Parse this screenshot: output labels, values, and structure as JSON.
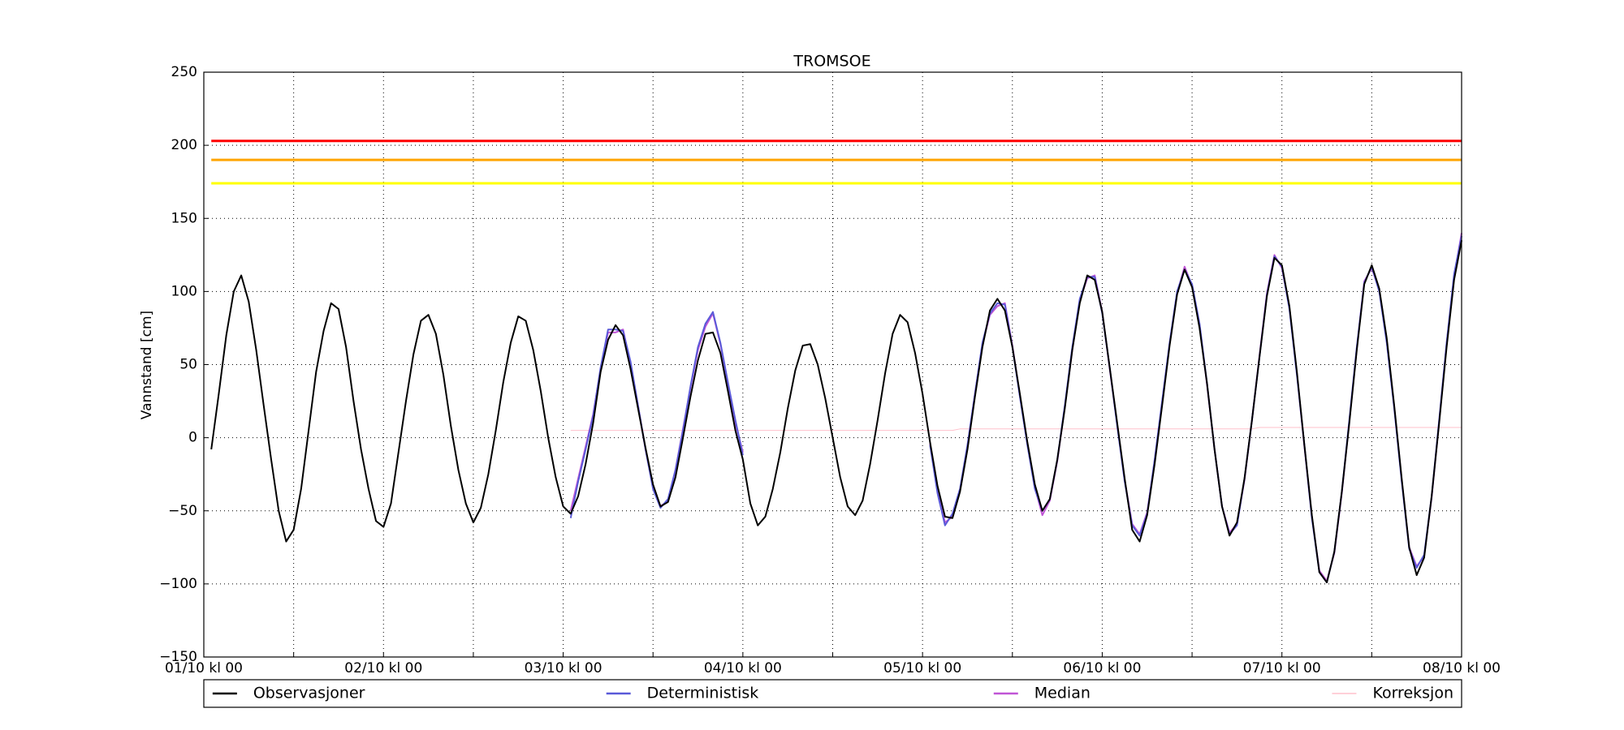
{
  "chart_data": {
    "type": "line",
    "title": "TROMSOE",
    "ylabel": "Vannstand [cm]",
    "x": [
      "01/10 kl 01",
      "01/10 kl 02",
      "01/10 kl 03",
      "01/10 kl 04",
      "01/10 kl 05",
      "01/10 kl 06",
      "01/10 kl 07",
      "01/10 kl 08",
      "01/10 kl 09",
      "01/10 kl 10",
      "01/10 kl 11",
      "01/10 kl 12",
      "01/10 kl 13",
      "01/10 kl 14",
      "01/10 kl 15",
      "01/10 kl 16",
      "01/10 kl 17",
      "01/10 kl 18",
      "01/10 kl 19",
      "01/10 kl 20",
      "01/10 kl 21",
      "01/10 kl 22",
      "01/10 kl 23",
      "02/10 kl 00",
      "02/10 kl 01",
      "02/10 kl 02",
      "02/10 kl 03",
      "02/10 kl 04",
      "02/10 kl 05",
      "02/10 kl 06",
      "02/10 kl 07",
      "02/10 kl 08",
      "02/10 kl 09",
      "02/10 kl 10",
      "02/10 kl 11",
      "02/10 kl 12",
      "02/10 kl 13",
      "02/10 kl 14",
      "02/10 kl 15",
      "02/10 kl 16",
      "02/10 kl 17",
      "02/10 kl 18",
      "02/10 kl 19",
      "02/10 kl 20",
      "02/10 kl 21",
      "02/10 kl 22",
      "02/10 kl 23",
      "03/10 kl 00",
      "03/10 kl 01",
      "03/10 kl 02",
      "03/10 kl 03",
      "03/10 kl 04",
      "03/10 kl 05",
      "03/10 kl 06",
      "03/10 kl 07",
      "03/10 kl 08",
      "03/10 kl 09",
      "03/10 kl 10",
      "03/10 kl 11",
      "03/10 kl 12",
      "03/10 kl 13",
      "03/10 kl 14",
      "03/10 kl 15",
      "03/10 kl 16",
      "03/10 kl 17",
      "03/10 kl 18",
      "03/10 kl 19",
      "03/10 kl 20",
      "03/10 kl 21",
      "03/10 kl 22",
      "03/10 kl 23",
      "04/10 kl 00",
      "04/10 kl 01",
      "04/10 kl 02",
      "04/10 kl 03",
      "04/10 kl 04",
      "04/10 kl 05",
      "04/10 kl 06",
      "04/10 kl 07",
      "04/10 kl 08",
      "04/10 kl 09",
      "04/10 kl 10",
      "04/10 kl 11",
      "04/10 kl 12",
      "04/10 kl 13",
      "04/10 kl 14",
      "04/10 kl 15",
      "04/10 kl 16",
      "04/10 kl 17",
      "04/10 kl 18",
      "04/10 kl 19",
      "04/10 kl 20",
      "04/10 kl 21",
      "04/10 kl 22",
      "04/10 kl 23",
      "05/10 kl 00",
      "05/10 kl 01",
      "05/10 kl 02",
      "05/10 kl 03",
      "05/10 kl 04",
      "05/10 kl 05",
      "05/10 kl 06",
      "05/10 kl 07",
      "05/10 kl 08",
      "05/10 kl 09",
      "05/10 kl 10",
      "05/10 kl 11",
      "05/10 kl 12",
      "05/10 kl 13",
      "05/10 kl 14",
      "05/10 kl 15",
      "05/10 kl 16",
      "05/10 kl 17",
      "05/10 kl 18",
      "05/10 kl 19",
      "05/10 kl 20",
      "05/10 kl 21",
      "05/10 kl 22",
      "05/10 kl 23",
      "06/10 kl 00",
      "06/10 kl 01",
      "06/10 kl 02",
      "06/10 kl 03",
      "06/10 kl 04",
      "06/10 kl 05",
      "06/10 kl 06",
      "06/10 kl 07",
      "06/10 kl 08",
      "06/10 kl 09",
      "06/10 kl 10",
      "06/10 kl 11",
      "06/10 kl 12",
      "06/10 kl 13",
      "06/10 kl 14",
      "06/10 kl 15",
      "06/10 kl 16",
      "06/10 kl 17",
      "06/10 kl 18",
      "06/10 kl 19",
      "06/10 kl 20",
      "06/10 kl 21",
      "06/10 kl 22",
      "06/10 kl 23",
      "07/10 kl 00",
      "07/10 kl 01",
      "07/10 kl 02",
      "07/10 kl 03",
      "07/10 kl 04",
      "07/10 kl 05",
      "07/10 kl 06",
      "07/10 kl 07",
      "07/10 kl 08",
      "07/10 kl 09",
      "07/10 kl 10",
      "07/10 kl 11",
      "07/10 kl 12",
      "07/10 kl 13",
      "07/10 kl 14",
      "07/10 kl 15",
      "07/10 kl 16",
      "07/10 kl 17",
      "07/10 kl 18",
      "07/10 kl 19",
      "07/10 kl 20",
      "07/10 kl 21",
      "07/10 kl 22",
      "07/10 kl 23",
      "08/10 kl 00"
    ],
    "series": [
      {
        "name": "Observasjoner",
        "color": "#000000",
        "width": 2,
        "values": [
          -8,
          30,
          70,
          100,
          111,
          93,
          60,
          22,
          -15,
          -50,
          -71,
          -63,
          -35,
          5,
          45,
          73,
          92,
          88,
          62,
          25,
          -8,
          -35,
          -57,
          -61,
          -45,
          -10,
          25,
          57,
          80,
          84,
          71,
          43,
          8,
          -22,
          -45,
          -58,
          -48,
          -25,
          5,
          38,
          65,
          83,
          80,
          60,
          32,
          0,
          -27,
          -47,
          -52,
          -40,
          -18,
          10,
          45,
          67,
          77,
          70,
          47,
          20,
          -7,
          -32,
          -47,
          -44,
          -27,
          0,
          28,
          53,
          71,
          72,
          58,
          32,
          5,
          -15,
          -45,
          -60,
          -54,
          -35,
          -10,
          20,
          46,
          63,
          64,
          50,
          27,
          0,
          -27,
          -47,
          -53,
          -43,
          -18,
          12,
          44,
          71,
          84,
          79,
          58,
          30,
          -3,
          -33,
          -54,
          -55,
          -37,
          -8,
          28,
          62,
          87,
          95,
          87,
          62,
          30,
          -3,
          -32,
          -50,
          -42,
          -15,
          20,
          60,
          92,
          111,
          108,
          86,
          48,
          10,
          -28,
          -63,
          -71,
          -53,
          -18,
          22,
          63,
          98,
          115,
          103,
          75,
          37,
          -8,
          -47,
          -67,
          -58,
          -28,
          12,
          55,
          97,
          123,
          118,
          90,
          45,
          -5,
          -53,
          -92,
          -99,
          -78,
          -37,
          10,
          60,
          105,
          118,
          102,
          68,
          22,
          -28,
          -75,
          -94,
          -82,
          -40,
          10,
          62,
          108,
          135
        ]
      },
      {
        "name": "Deterministisk",
        "color": "#5a5ad8",
        "width": 2,
        "values": [
          null,
          null,
          null,
          null,
          null,
          null,
          null,
          null,
          null,
          null,
          null,
          null,
          null,
          null,
          null,
          null,
          null,
          null,
          null,
          null,
          null,
          null,
          null,
          null,
          null,
          null,
          null,
          null,
          null,
          null,
          null,
          null,
          null,
          null,
          null,
          null,
          null,
          null,
          null,
          null,
          null,
          null,
          null,
          null,
          null,
          null,
          null,
          null,
          -55,
          -30,
          -8,
          15,
          48,
          74,
          74,
          73,
          52,
          22,
          -8,
          -35,
          -48,
          -42,
          -22,
          5,
          35,
          62,
          78,
          86,
          65,
          38,
          12,
          -12,
          null,
          null,
          null,
          null,
          null,
          null,
          null,
          null,
          null,
          null,
          null,
          null,
          null,
          null,
          null,
          null,
          null,
          null,
          null,
          null,
          null,
          null,
          null,
          null,
          -5,
          -38,
          -60,
          -52,
          -35,
          -5,
          30,
          65,
          85,
          92,
          91,
          62,
          28,
          -5,
          -35,
          -50,
          -42,
          -15,
          22,
          62,
          95,
          110,
          110,
          85,
          48,
          8,
          -30,
          -60,
          -67,
          -52,
          -15,
          25,
          65,
          100,
          115,
          105,
          78,
          37,
          -8,
          -47,
          -66,
          -60,
          -28,
          12,
          55,
          98,
          124,
          117,
          88,
          43,
          -5,
          -55,
          -92,
          -99,
          -78,
          -37,
          12,
          62,
          106,
          117,
          100,
          65,
          20,
          -30,
          -76,
          -89,
          -80,
          -40,
          12,
          65,
          112,
          138
        ]
      },
      {
        "name": "Median",
        "color": "#c055d6",
        "width": 2,
        "values": [
          null,
          null,
          null,
          null,
          null,
          null,
          null,
          null,
          null,
          null,
          null,
          null,
          null,
          null,
          null,
          null,
          null,
          null,
          null,
          null,
          null,
          null,
          null,
          null,
          null,
          null,
          null,
          null,
          null,
          null,
          null,
          null,
          null,
          null,
          null,
          null,
          null,
          null,
          null,
          null,
          null,
          null,
          null,
          null,
          null,
          null,
          null,
          null,
          -50,
          -28,
          -6,
          16,
          47,
          72,
          72,
          74,
          50,
          22,
          -8,
          -34,
          -47,
          -43,
          -22,
          6,
          34,
          60,
          76,
          85,
          64,
          37,
          10,
          -10,
          null,
          null,
          null,
          null,
          null,
          null,
          null,
          null,
          null,
          null,
          null,
          null,
          null,
          null,
          null,
          null,
          null,
          null,
          null,
          null,
          null,
          null,
          null,
          null,
          -4,
          -36,
          -58,
          -54,
          -36,
          -6,
          30,
          64,
          84,
          90,
          92,
          63,
          29,
          -4,
          -34,
          -53,
          -43,
          -16,
          21,
          60,
          94,
          109,
          111,
          86,
          47,
          9,
          -29,
          -59,
          -66,
          -51,
          -16,
          24,
          64,
          99,
          117,
          104,
          77,
          36,
          -8,
          -47,
          -65,
          -59,
          -29,
          12,
          56,
          99,
          125,
          116,
          89,
          44,
          -6,
          -54,
          -91,
          -98,
          -79,
          -38,
          11,
          61,
          107,
          116,
          101,
          66,
          21,
          -29,
          -75,
          -88,
          -81,
          -41,
          11,
          64,
          110,
          140
        ]
      },
      {
        "name": "Korreksjon",
        "color": "#ffc0cb",
        "width": 1,
        "values": [
          null,
          null,
          null,
          null,
          null,
          null,
          null,
          null,
          null,
          null,
          null,
          null,
          null,
          null,
          null,
          null,
          null,
          null,
          null,
          null,
          null,
          null,
          null,
          null,
          null,
          null,
          null,
          null,
          null,
          null,
          null,
          null,
          null,
          null,
          null,
          null,
          null,
          null,
          null,
          null,
          null,
          null,
          null,
          null,
          null,
          null,
          null,
          null,
          5,
          5,
          5,
          5,
          5,
          5,
          5,
          5,
          5,
          5,
          5,
          5,
          5,
          5,
          5,
          5,
          5,
          5,
          5,
          5,
          5,
          5,
          5,
          5,
          5,
          5,
          5,
          5,
          5,
          5,
          5,
          5,
          5,
          5,
          5,
          5,
          5,
          5,
          5,
          5,
          5,
          5,
          5,
          5,
          5,
          5,
          5,
          5,
          5,
          5,
          5,
          5,
          6,
          6,
          6,
          6,
          6,
          6,
          6,
          6,
          6,
          6,
          6,
          6,
          6,
          6,
          6,
          6,
          6,
          6,
          6,
          6,
          6,
          6,
          6,
          6,
          6,
          6,
          6,
          6,
          6,
          6,
          6,
          6,
          6,
          6,
          6,
          6,
          6,
          6,
          6,
          6,
          7,
          7,
          7,
          7,
          7,
          7,
          7,
          7,
          7,
          7,
          7,
          7,
          7,
          7,
          7,
          7,
          7,
          7,
          7,
          7,
          7,
          7,
          7,
          7,
          7,
          7,
          7,
          7
        ]
      }
    ],
    "hlines": [
      {
        "value": 203,
        "color": "#ff0000"
      },
      {
        "value": 190,
        "color": "#ffa500"
      },
      {
        "value": 174,
        "color": "#ffff00"
      }
    ],
    "xlim": [
      "01/10 kl 00",
      "08/10 kl 00"
    ],
    "xticks": [
      "01/10 kl 00",
      null,
      "02/10 kl 00",
      null,
      "03/10 kl 00",
      null,
      "04/10 kl 00",
      null,
      "05/10 kl 00",
      null,
      "06/10 kl 00",
      null,
      "07/10 kl 00",
      null,
      "08/10 kl 00"
    ],
    "ylim": [
      -150,
      250
    ],
    "yticks": [
      {
        "value": -150,
        "label": "−150"
      },
      {
        "value": -100,
        "label": "−100"
      },
      {
        "value": -50,
        "label": "−50"
      },
      0,
      50,
      100,
      150,
      200,
      250
    ],
    "grid": true,
    "legend": "below"
  }
}
